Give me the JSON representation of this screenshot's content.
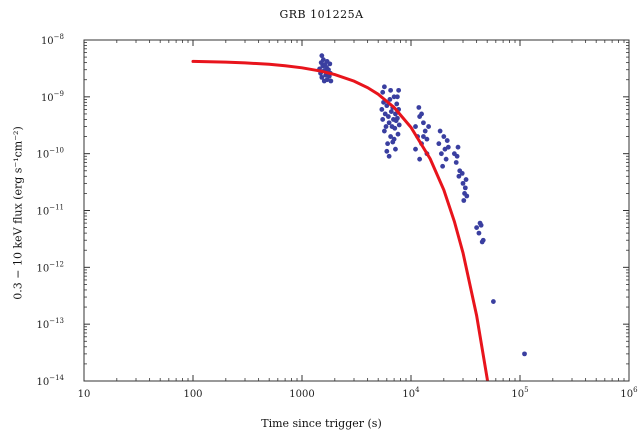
{
  "chart_data": {
    "type": "scatter",
    "title": "GRB 101225A",
    "xlabel": "Time since trigger (s)",
    "ylabel": "0.3 − 10 keV flux (erg s⁻¹cm⁻²)",
    "x_scale": "log",
    "y_scale": "log",
    "xlim": [
      10,
      1000000
    ],
    "ylim": [
      1e-14,
      1e-08
    ],
    "x_ticks": [
      {
        "mant": "10",
        "exp": ""
      },
      {
        "mant": "100",
        "exp": ""
      },
      {
        "mant": "1000",
        "exp": ""
      },
      {
        "mant": "10",
        "exp": "4"
      },
      {
        "mant": "10",
        "exp": "5"
      },
      {
        "mant": "10",
        "exp": "6"
      }
    ],
    "y_ticks": [
      {
        "mant": "10",
        "exp": "−14"
      },
      {
        "mant": "10",
        "exp": "−13"
      },
      {
        "mant": "10",
        "exp": "−12"
      },
      {
        "mant": "10",
        "exp": "−11"
      },
      {
        "mant": "10",
        "exp": "−10"
      },
      {
        "mant": "10",
        "exp": "−9"
      },
      {
        "mant": "10",
        "exp": "−8"
      }
    ],
    "colors": {
      "data": "#3a3fa0",
      "model": "#e8141c",
      "axis": "#333333"
    },
    "series": [
      {
        "kind": "points",
        "points": [
          [
            1450,
            3.1e-09
          ],
          [
            1480,
            2.6e-09
          ],
          [
            1500,
            4e-09
          ],
          [
            1520,
            2.2e-09
          ],
          [
            1550,
            3.5e-09
          ],
          [
            1570,
            4.5e-09
          ],
          [
            1600,
            2.9e-09
          ],
          [
            1620,
            3.7e-09
          ],
          [
            1650,
            2.4e-09
          ],
          [
            1680,
            3.3e-09
          ],
          [
            1700,
            4.2e-09
          ],
          [
            1720,
            2.7e-09
          ],
          [
            1750,
            3e-09
          ],
          [
            1780,
            2.3e-09
          ],
          [
            1800,
            3.8e-09
          ],
          [
            1820,
            2.6e-09
          ],
          [
            1840,
            1.9e-09
          ],
          [
            1520,
            5.3e-09
          ],
          [
            1600,
            1.9e-09
          ],
          [
            1700,
            2e-09
          ],
          [
            5400,
            6e-10
          ],
          [
            5500,
            4e-10
          ],
          [
            5600,
            8e-10
          ],
          [
            5700,
            2.5e-10
          ],
          [
            5800,
            5e-10
          ],
          [
            5900,
            3e-10
          ],
          [
            6000,
            7e-10
          ],
          [
            6100,
            1.5e-10
          ],
          [
            6200,
            4.5e-10
          ],
          [
            6300,
            3.5e-10
          ],
          [
            6400,
            9e-10
          ],
          [
            6500,
            2e-10
          ],
          [
            6600,
            5.5e-10
          ],
          [
            6700,
            3e-10
          ],
          [
            6800,
            6.5e-10
          ],
          [
            6900,
            4e-10
          ],
          [
            7000,
            1e-09
          ],
          [
            7100,
            2.8e-10
          ],
          [
            7200,
            5e-10
          ],
          [
            7300,
            3.8e-10
          ],
          [
            7400,
            7.5e-10
          ],
          [
            7500,
            4.2e-10
          ],
          [
            7600,
            2.2e-10
          ],
          [
            7700,
            6e-10
          ],
          [
            7800,
            3.2e-10
          ],
          [
            5500,
            1.2e-09
          ],
          [
            6000,
            1.1e-10
          ],
          [
            6500,
            1.3e-09
          ],
          [
            7000,
            1.8e-10
          ],
          [
            7500,
            1e-09
          ],
          [
            5700,
            1.5e-09
          ],
          [
            6300,
            9e-11
          ],
          [
            6800,
            1.6e-10
          ],
          [
            7200,
            1.2e-10
          ],
          [
            7700,
            1.3e-09
          ],
          [
            11000,
            3e-10
          ],
          [
            11500,
            2e-10
          ],
          [
            12000,
            4.5e-10
          ],
          [
            12500,
            1.5e-10
          ],
          [
            13000,
            3.5e-10
          ],
          [
            13500,
            2.5e-10
          ],
          [
            14000,
            1.8e-10
          ],
          [
            14500,
            3e-10
          ],
          [
            11000,
            1.2e-10
          ],
          [
            12000,
            8e-11
          ],
          [
            13000,
            2e-10
          ],
          [
            14000,
            1e-10
          ],
          [
            12500,
            5e-10
          ],
          [
            11800,
            6.5e-10
          ],
          [
            18000,
            1.5e-10
          ],
          [
            19000,
            1e-10
          ],
          [
            20000,
            2e-10
          ],
          [
            21000,
            8e-11
          ],
          [
            22000,
            1.3e-10
          ],
          [
            19500,
            6e-11
          ],
          [
            18500,
            2.5e-10
          ],
          [
            20500,
            1.2e-10
          ],
          [
            21500,
            1.7e-10
          ],
          [
            25000,
            1e-10
          ],
          [
            26000,
            7e-11
          ],
          [
            27000,
            1.3e-10
          ],
          [
            28000,
            5e-11
          ],
          [
            26500,
            9e-11
          ],
          [
            27500,
            4e-11
          ],
          [
            30000,
            3e-11
          ],
          [
            31000,
            2e-11
          ],
          [
            32000,
            3.5e-11
          ],
          [
            30500,
            1.5e-11
          ],
          [
            31500,
            2.5e-11
          ],
          [
            29500,
            4.5e-11
          ],
          [
            32500,
            1.8e-11
          ],
          [
            40000,
            5e-12
          ],
          [
            42000,
            4e-12
          ],
          [
            44000,
            5.5e-12
          ],
          [
            46000,
            3e-12
          ],
          [
            43000,
            6e-12
          ],
          [
            45000,
            2.8e-12
          ],
          [
            57000,
            2.5e-13
          ],
          [
            110000,
            3e-14
          ]
        ]
      },
      {
        "kind": "line",
        "points": [
          [
            100,
            4.2e-09
          ],
          [
            200,
            4.08e-09
          ],
          [
            300,
            3.96e-09
          ],
          [
            500,
            3.74e-09
          ],
          [
            700,
            3.53e-09
          ],
          [
            1000,
            3.24e-09
          ],
          [
            1500,
            2.83e-09
          ],
          [
            2000,
            2.47e-09
          ],
          [
            3000,
            1.89e-09
          ],
          [
            4000,
            1.45e-09
          ],
          [
            5000,
            1.11e-09
          ],
          [
            7000,
            6.5e-10
          ],
          [
            10000,
            2.9e-10
          ],
          [
            15000,
            8.1e-11
          ],
          [
            20000,
            2.3e-11
          ],
          [
            25000,
            6.4e-12
          ],
          [
            30000,
            1.8e-12
          ],
          [
            40000,
            1.42e-13
          ],
          [
            50000,
            1.1e-14
          ],
          [
            52500,
            5.8e-15
          ]
        ]
      }
    ]
  }
}
